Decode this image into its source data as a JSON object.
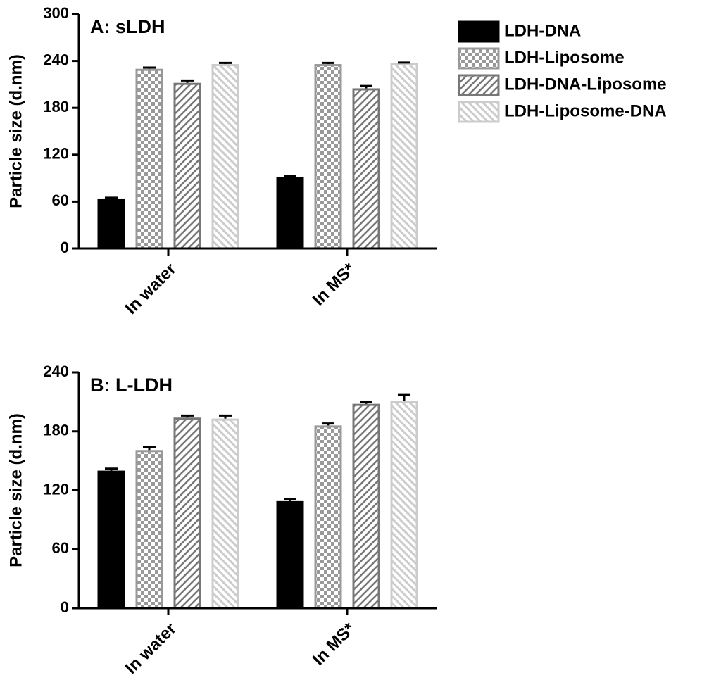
{
  "chart_data": [
    {
      "type": "bar",
      "title": "A: sLDH",
      "y_label": "Particle size (d.nm)",
      "categories": [
        "In water",
        "In MS*"
      ],
      "series": [
        {
          "name": "LDH-DNA",
          "color": "#000000",
          "pattern": "solid",
          "values": [
            64,
            91
          ],
          "errors": [
            1,
            2
          ]
        },
        {
          "name": "LDH-Liposome",
          "color": "#999999",
          "pattern": "checker",
          "values": [
            230,
            236
          ],
          "errors": [
            1.5,
            1.5
          ]
        },
        {
          "name": "LDH-DNA-Liposome",
          "color": "#777777",
          "pattern": "hatch-up",
          "values": [
            212,
            205
          ],
          "errors": [
            3,
            3
          ]
        },
        {
          "name": "LDH-Liposome-DNA",
          "color": "#cccccc",
          "pattern": "hatch-down",
          "values": [
            236,
            237
          ],
          "errors": [
            1.5,
            1
          ]
        }
      ],
      "ylim": [
        0,
        300
      ],
      "yticks": [
        0,
        60,
        120,
        180,
        240,
        300
      ],
      "grid": false,
      "legend": "right"
    },
    {
      "type": "bar",
      "title": "B: L-LDH",
      "y_label": "Particle size (d.nm)",
      "categories": [
        "In water",
        "In MS*"
      ],
      "series": [
        {
          "color": "#000000",
          "pattern": "solid",
          "values": [
            140,
            109
          ],
          "errors": [
            2,
            2
          ]
        },
        {
          "color": "#999999",
          "pattern": "checker",
          "values": [
            161,
            186
          ],
          "errors": [
            3,
            2
          ]
        },
        {
          "color": "#777777",
          "pattern": "hatch-up",
          "values": [
            194,
            208
          ],
          "errors": [
            2,
            2
          ]
        },
        {
          "color": "#cccccc",
          "pattern": "hatch-down",
          "values": [
            193,
            211
          ],
          "errors": [
            3,
            6
          ]
        }
      ],
      "ylim": [
        0,
        240
      ],
      "yticks": [
        0,
        60,
        120,
        180,
        240
      ],
      "grid": false
    }
  ]
}
